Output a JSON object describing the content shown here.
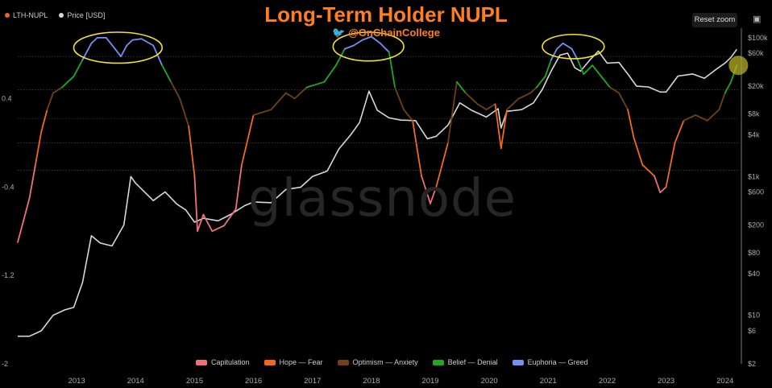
{
  "header": {
    "title": "Long-Term Holder NUPL",
    "handle": "@OnChainCollege",
    "reset_zoom": "Reset zoom"
  },
  "legend_top": [
    {
      "label": "LTH-NUPL",
      "color": "#e46a1c"
    },
    {
      "label": "Price [USD]",
      "color": "#d8d8d8"
    }
  ],
  "legend_bottom": [
    {
      "label": "Capitulation",
      "color": "#f0707a"
    },
    {
      "label": "Hope — Fear",
      "color": "#f06a18"
    },
    {
      "label": "Optimism — Anxiety",
      "color": "#6e4214"
    },
    {
      "label": "Belief — Denial",
      "color": "#1eaa1e"
    },
    {
      "label": "Euphoria — Greed",
      "color": "#7490f0"
    }
  ],
  "watermark": "glassnode",
  "icons": {
    "twitter": "twitter-icon",
    "camera": "camera-icon"
  },
  "chart_data": {
    "type": "line",
    "x_ticks": [
      "2013",
      "2014",
      "2015",
      "2016",
      "2017",
      "2018",
      "2019",
      "2020",
      "2021",
      "2022",
      "2023",
      "2024"
    ],
    "left_ticks": [
      "0.4",
      "-0.4",
      "-1.2",
      "-2"
    ],
    "left_tick_values": [
      0.4,
      -0.4,
      -1.2,
      -2
    ],
    "right_ticks": [
      "$100k",
      "$60k",
      "$20k",
      "$8k",
      "$4k",
      "$1k",
      "$600",
      "$200",
      "$80",
      "$40",
      "$10",
      "$6",
      "$2"
    ],
    "right_tick_values": [
      100000,
      60000,
      20000,
      8000,
      4000,
      1000,
      600,
      200,
      80,
      40,
      10,
      6,
      2
    ],
    "right_scale": "log",
    "xlim": [
      2012.0,
      2024.25
    ],
    "ylim_left": [
      -2,
      1
    ],
    "ylim_right": [
      2,
      120000
    ],
    "series": [
      {
        "name": "Price [USD]",
        "axis": "right",
        "color": "#d8d8d8",
        "points": [
          [
            2012.0,
            5
          ],
          [
            2012.2,
            5
          ],
          [
            2012.4,
            6
          ],
          [
            2012.6,
            10
          ],
          [
            2012.8,
            12
          ],
          [
            2012.95,
            13
          ],
          [
            2013.1,
            30
          ],
          [
            2013.25,
            140
          ],
          [
            2013.4,
            110
          ],
          [
            2013.6,
            100
          ],
          [
            2013.8,
            200
          ],
          [
            2013.92,
            1000
          ],
          [
            2014.0,
            800
          ],
          [
            2014.15,
            600
          ],
          [
            2014.3,
            450
          ],
          [
            2014.5,
            600
          ],
          [
            2014.7,
            400
          ],
          [
            2014.85,
            330
          ],
          [
            2015.0,
            220
          ],
          [
            2015.15,
            250
          ],
          [
            2015.4,
            230
          ],
          [
            2015.6,
            280
          ],
          [
            2015.85,
            380
          ],
          [
            2016.0,
            430
          ],
          [
            2016.3,
            420
          ],
          [
            2016.55,
            650
          ],
          [
            2016.8,
            700
          ],
          [
            2017.0,
            1000
          ],
          [
            2017.25,
            1200
          ],
          [
            2017.45,
            2500
          ],
          [
            2017.65,
            4000
          ],
          [
            2017.8,
            6000
          ],
          [
            2017.96,
            17000
          ],
          [
            2018.1,
            9000
          ],
          [
            2018.3,
            7000
          ],
          [
            2018.5,
            6500
          ],
          [
            2018.75,
            6400
          ],
          [
            2018.95,
            3500
          ],
          [
            2019.1,
            3800
          ],
          [
            2019.3,
            5500
          ],
          [
            2019.5,
            11500
          ],
          [
            2019.7,
            9000
          ],
          [
            2019.95,
            7200
          ],
          [
            2020.15,
            9500
          ],
          [
            2020.2,
            5000
          ],
          [
            2020.3,
            8700
          ],
          [
            2020.55,
            9200
          ],
          [
            2020.75,
            11500
          ],
          [
            2020.9,
            18000
          ],
          [
            2021.05,
            33000
          ],
          [
            2021.2,
            56000
          ],
          [
            2021.33,
            60000
          ],
          [
            2021.45,
            37000
          ],
          [
            2021.55,
            33000
          ],
          [
            2021.7,
            47000
          ],
          [
            2021.85,
            64000
          ],
          [
            2022.0,
            43000
          ],
          [
            2022.2,
            44000
          ],
          [
            2022.35,
            30000
          ],
          [
            2022.5,
            20000
          ],
          [
            2022.7,
            19500
          ],
          [
            2022.9,
            16500
          ],
          [
            2023.0,
            16500
          ],
          [
            2023.2,
            28000
          ],
          [
            2023.45,
            30000
          ],
          [
            2023.65,
            26000
          ],
          [
            2023.85,
            35000
          ],
          [
            2024.0,
            43000
          ],
          [
            2024.1,
            52000
          ],
          [
            2024.2,
            68000
          ]
        ]
      },
      {
        "name": "LTH-NUPL",
        "axis": "left",
        "points": [
          [
            2012.0,
            -0.9
          ],
          [
            2012.1,
            -0.7
          ],
          [
            2012.2,
            -0.5
          ],
          [
            2012.3,
            -0.2
          ],
          [
            2012.4,
            0.1
          ],
          [
            2012.5,
            0.3
          ],
          [
            2012.6,
            0.45
          ],
          [
            2012.75,
            0.5
          ],
          [
            2012.95,
            0.6
          ],
          [
            2013.1,
            0.75
          ],
          [
            2013.25,
            0.9
          ],
          [
            2013.35,
            0.95
          ],
          [
            2013.5,
            0.95
          ],
          [
            2013.65,
            0.85
          ],
          [
            2013.75,
            0.78
          ],
          [
            2013.85,
            0.88
          ],
          [
            2013.95,
            0.93
          ],
          [
            2014.1,
            0.94
          ],
          [
            2014.3,
            0.88
          ],
          [
            2014.45,
            0.7
          ],
          [
            2014.6,
            0.55
          ],
          [
            2014.75,
            0.4
          ],
          [
            2014.9,
            0.15
          ],
          [
            2015.0,
            -0.3
          ],
          [
            2015.05,
            -0.8
          ],
          [
            2015.15,
            -0.65
          ],
          [
            2015.3,
            -0.8
          ],
          [
            2015.5,
            -0.75
          ],
          [
            2015.7,
            -0.6
          ],
          [
            2015.8,
            -0.2
          ],
          [
            2016.0,
            0.25
          ],
          [
            2016.3,
            0.3
          ],
          [
            2016.55,
            0.45
          ],
          [
            2016.7,
            0.4
          ],
          [
            2016.9,
            0.5
          ],
          [
            2017.2,
            0.55
          ],
          [
            2017.4,
            0.7
          ],
          [
            2017.55,
            0.85
          ],
          [
            2017.7,
            0.88
          ],
          [
            2017.85,
            0.93
          ],
          [
            2018.0,
            0.96
          ],
          [
            2018.15,
            0.9
          ],
          [
            2018.3,
            0.82
          ],
          [
            2018.4,
            0.5
          ],
          [
            2018.55,
            0.3
          ],
          [
            2018.7,
            0.2
          ],
          [
            2018.85,
            -0.3
          ],
          [
            2019.0,
            -0.55
          ],
          [
            2019.1,
            -0.4
          ],
          [
            2019.3,
            0.0
          ],
          [
            2019.45,
            0.55
          ],
          [
            2019.6,
            0.45
          ],
          [
            2019.8,
            0.35
          ],
          [
            2019.95,
            0.3
          ],
          [
            2020.1,
            0.35
          ],
          [
            2020.2,
            -0.05
          ],
          [
            2020.3,
            0.3
          ],
          [
            2020.5,
            0.4
          ],
          [
            2020.7,
            0.45
          ],
          [
            2020.8,
            0.5
          ],
          [
            2020.95,
            0.6
          ],
          [
            2021.05,
            0.75
          ],
          [
            2021.15,
            0.85
          ],
          [
            2021.25,
            0.9
          ],
          [
            2021.4,
            0.85
          ],
          [
            2021.5,
            0.75
          ],
          [
            2021.6,
            0.62
          ],
          [
            2021.75,
            0.7
          ],
          [
            2021.9,
            0.6
          ],
          [
            2022.05,
            0.5
          ],
          [
            2022.2,
            0.45
          ],
          [
            2022.35,
            0.3
          ],
          [
            2022.45,
            0.05
          ],
          [
            2022.6,
            -0.2
          ],
          [
            2022.8,
            -0.3
          ],
          [
            2022.9,
            -0.45
          ],
          [
            2023.0,
            -0.4
          ],
          [
            2023.15,
            0.0
          ],
          [
            2023.3,
            0.2
          ],
          [
            2023.5,
            0.25
          ],
          [
            2023.7,
            0.2
          ],
          [
            2023.9,
            0.3
          ],
          [
            2024.0,
            0.45
          ],
          [
            2024.1,
            0.55
          ],
          [
            2024.2,
            0.7
          ]
        ],
        "zones": [
          {
            "name": "Capitulation",
            "below": -0.25,
            "color": "#f0707a"
          },
          {
            "name": "Hope — Fear",
            "below": 0.22,
            "color": "#f06a18"
          },
          {
            "name": "Optimism — Anxiety",
            "below": 0.48,
            "color": "#6e4214"
          },
          {
            "name": "Belief — Denial",
            "below": 0.78,
            "color": "#1eaa1e"
          },
          {
            "name": "Euphoria — Greed",
            "below": 2,
            "color": "#7490f0"
          }
        ]
      }
    ],
    "zone_lines_left": [
      0.78,
      0.48,
      0.22,
      0.0,
      -0.25
    ],
    "highlights": [
      {
        "type": "ellipse",
        "x_start": 2012.95,
        "x_end": 2014.45,
        "y_low": 0.72,
        "y_high": 1.0,
        "color": "#f2e230"
      },
      {
        "type": "ellipse",
        "x_start": 2017.35,
        "x_end": 2018.55,
        "y_low": 0.74,
        "y_high": 1.0,
        "color": "#f2e230"
      },
      {
        "type": "ellipse",
        "x_start": 2020.9,
        "x_end": 2021.95,
        "y_low": 0.76,
        "y_high": 0.98,
        "color": "#f2e230"
      },
      {
        "type": "marker",
        "x": 2024.2,
        "y": 0.7,
        "color": "#b8b020"
      }
    ]
  }
}
